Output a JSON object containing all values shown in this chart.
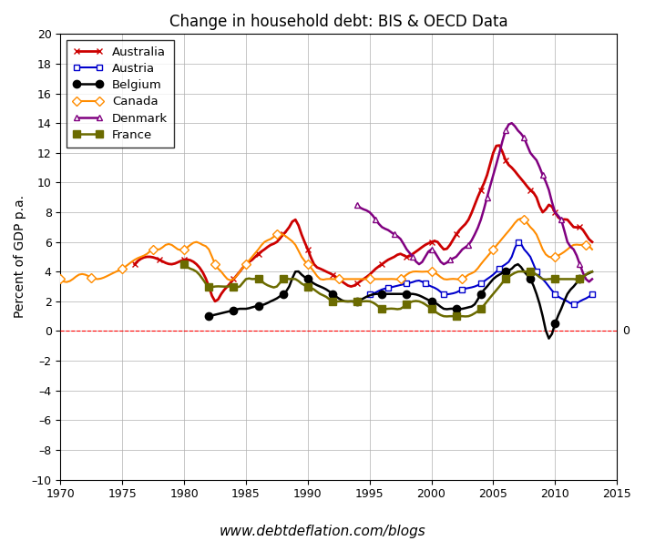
{
  "title": "Change in household debt: BIS & OECD Data",
  "ylabel": "Percent of GDP p.a.",
  "xlabel_bottom": "www.debtdeflation.com/blogs",
  "xlim": [
    1970,
    2015
  ],
  "ylim": [
    -10,
    20
  ],
  "yticks": [
    -10,
    -8,
    -6,
    -4,
    -2,
    0,
    2,
    4,
    6,
    8,
    10,
    12,
    14,
    16,
    18,
    20
  ],
  "ytick_labels": [
    "–10",
    "–8",
    "–6",
    "–4",
    "–2",
    "0",
    "2",
    "4",
    "6",
    "8",
    "10",
    "12",
    "14",
    "16",
    "18",
    "20"
  ],
  "xticks": [
    1970,
    1975,
    1980,
    1985,
    1990,
    1995,
    2000,
    2005,
    2010,
    2015
  ],
  "zero_label": "0",
  "series": {
    "Australia": {
      "color": "#cc0000",
      "marker": "x",
      "markersize": 5,
      "linewidth": 2.0,
      "markevery": 8,
      "markerfacecolor": "#cc0000",
      "ctrl_x": [
        1976.0,
        1977.0,
        1978.0,
        1979.0,
        1980.0,
        1981.0,
        1982.0,
        1982.5,
        1983.0,
        1983.5,
        1984.0,
        1984.5,
        1985.0,
        1985.5,
        1986.0,
        1986.5,
        1987.0,
        1987.5,
        1988.0,
        1988.5,
        1989.0,
        1989.5,
        1990.0,
        1990.5,
        1991.0,
        1991.5,
        1992.0,
        1992.5,
        1993.0,
        1993.5,
        1994.0,
        1994.5,
        1995.0,
        1995.5,
        1996.0,
        1996.5,
        1997.0,
        1997.5,
        1998.0,
        1998.5,
        1999.0,
        1999.5,
        2000.0,
        2000.5,
        2001.0,
        2001.5,
        2002.0,
        2002.5,
        2003.0,
        2003.5,
        2004.0,
        2004.5,
        2005.0,
        2005.5,
        2006.0,
        2006.5,
        2007.0,
        2007.5,
        2008.0,
        2008.5,
        2009.0,
        2009.5,
        2010.0,
        2010.5,
        2011.0,
        2011.5,
        2012.0,
        2012.5,
        2013.0
      ],
      "ctrl_y": [
        4.5,
        5.0,
        4.8,
        4.5,
        4.8,
        4.5,
        3.0,
        2.0,
        2.5,
        3.0,
        3.5,
        4.0,
        4.5,
        4.8,
        5.2,
        5.5,
        5.8,
        6.0,
        6.5,
        7.0,
        7.5,
        6.5,
        5.5,
        4.5,
        4.2,
        4.0,
        3.8,
        3.5,
        3.2,
        3.0,
        3.2,
        3.5,
        3.8,
        4.2,
        4.5,
        4.8,
        5.0,
        5.2,
        5.0,
        5.2,
        5.5,
        5.8,
        6.0,
        6.0,
        5.5,
        5.8,
        6.5,
        7.0,
        7.5,
        8.5,
        9.5,
        10.5,
        12.0,
        12.5,
        11.5,
        11.0,
        10.5,
        10.0,
        9.5,
        9.0,
        8.0,
        8.5,
        8.0,
        7.5,
        7.5,
        7.0,
        7.0,
        6.5,
        6.0
      ]
    },
    "Austria": {
      "color": "#0000cc",
      "marker": "s",
      "markersize": 5,
      "linewidth": 1.5,
      "markevery": 6,
      "markerfacecolor": "white",
      "ctrl_x": [
        1995.0,
        1995.5,
        1996.0,
        1996.5,
        1997.0,
        1997.5,
        1998.0,
        1998.5,
        1999.0,
        1999.5,
        2000.0,
        2000.5,
        2001.0,
        2001.5,
        2002.0,
        2002.5,
        2003.0,
        2003.5,
        2004.0,
        2004.5,
        2005.0,
        2005.5,
        2006.0,
        2006.5,
        2007.0,
        2007.5,
        2008.0,
        2008.5,
        2009.0,
        2009.5,
        2010.0,
        2010.5,
        2011.0,
        2011.5,
        2012.0,
        2012.5,
        2013.0
      ],
      "ctrl_y": [
        2.5,
        2.6,
        2.8,
        2.9,
        3.0,
        3.1,
        3.2,
        3.3,
        3.4,
        3.2,
        3.0,
        2.8,
        2.5,
        2.5,
        2.6,
        2.8,
        2.9,
        3.0,
        3.2,
        3.5,
        3.8,
        4.2,
        4.5,
        5.0,
        6.0,
        5.5,
        5.0,
        4.0,
        3.5,
        3.0,
        2.5,
        2.2,
        2.0,
        1.8,
        2.0,
        2.2,
        2.5
      ]
    },
    "Belgium": {
      "color": "#000000",
      "marker": "o",
      "markersize": 6,
      "linewidth": 1.8,
      "markevery": 8,
      "markerfacecolor": "#000000",
      "ctrl_x": [
        1982.0,
        1982.5,
        1983.0,
        1983.5,
        1984.0,
        1984.5,
        1985.0,
        1985.5,
        1986.0,
        1986.5,
        1987.0,
        1987.5,
        1988.0,
        1988.5,
        1989.0,
        1989.5,
        1990.0,
        1990.5,
        1991.0,
        1991.5,
        1992.0,
        1992.5,
        1993.0,
        1993.5,
        1994.0,
        1994.5,
        1995.0,
        1995.5,
        1996.0,
        1996.5,
        1997.0,
        1997.5,
        1998.0,
        1998.5,
        1999.0,
        1999.5,
        2000.0,
        2000.5,
        2001.0,
        2001.5,
        2002.0,
        2002.5,
        2003.0,
        2003.5,
        2004.0,
        2004.5,
        2005.0,
        2005.5,
        2006.0,
        2006.5,
        2007.0,
        2007.5,
        2008.0,
        2008.5,
        2009.0,
        2009.5,
        2010.0,
        2010.5,
        2011.0,
        2011.5,
        2012.0,
        2012.5,
        2013.0
      ],
      "ctrl_y": [
        1.0,
        1.1,
        1.2,
        1.3,
        1.4,
        1.5,
        1.5,
        1.6,
        1.7,
        1.8,
        2.0,
        2.2,
        2.5,
        3.0,
        4.0,
        3.8,
        3.5,
        3.2,
        3.0,
        2.8,
        2.5,
        2.2,
        2.0,
        2.0,
        2.0,
        2.2,
        2.4,
        2.5,
        2.5,
        2.5,
        2.5,
        2.5,
        2.5,
        2.5,
        2.4,
        2.2,
        2.0,
        1.8,
        1.5,
        1.5,
        1.5,
        1.5,
        1.6,
        1.8,
        2.5,
        3.0,
        3.5,
        3.8,
        4.0,
        4.2,
        4.5,
        4.0,
        3.5,
        2.5,
        1.0,
        -0.5,
        0.5,
        1.5,
        2.5,
        3.0,
        3.5,
        3.8,
        4.0
      ]
    },
    "Canada": {
      "color": "#ff8c00",
      "marker": "D",
      "markersize": 5,
      "linewidth": 1.5,
      "markevery": 10,
      "markerfacecolor": "white",
      "ctrl_x": [
        1970.0,
        1970.5,
        1971.0,
        1971.5,
        1972.0,
        1972.5,
        1973.0,
        1973.5,
        1974.0,
        1974.5,
        1975.0,
        1975.5,
        1976.0,
        1976.5,
        1977.0,
        1977.5,
        1978.0,
        1978.5,
        1979.0,
        1979.5,
        1980.0,
        1980.5,
        1981.0,
        1981.5,
        1982.0,
        1982.5,
        1983.0,
        1983.5,
        1984.0,
        1984.5,
        1985.0,
        1985.5,
        1986.0,
        1986.5,
        1987.0,
        1987.5,
        1988.0,
        1988.5,
        1989.0,
        1989.5,
        1990.0,
        1990.5,
        1991.0,
        1991.5,
        1992.0,
        1992.5,
        1993.0,
        1993.5,
        1994.0,
        1994.5,
        1995.0,
        1995.5,
        1996.0,
        1996.5,
        1997.0,
        1997.5,
        1998.0,
        1998.5,
        1999.0,
        1999.5,
        2000.0,
        2000.5,
        2001.0,
        2001.5,
        2002.0,
        2002.5,
        2003.0,
        2003.5,
        2004.0,
        2004.5,
        2005.0,
        2005.5,
        2006.0,
        2006.5,
        2007.0,
        2007.5,
        2008.0,
        2008.5,
        2009.0,
        2009.5,
        2010.0,
        2010.5,
        2011.0,
        2011.5,
        2012.0,
        2012.5,
        2013.0
      ],
      "ctrl_y": [
        3.5,
        3.3,
        3.5,
        3.8,
        3.8,
        3.6,
        3.5,
        3.6,
        3.8,
        4.0,
        4.2,
        4.5,
        4.8,
        5.0,
        5.2,
        5.5,
        5.5,
        5.8,
        5.8,
        5.5,
        5.5,
        5.8,
        6.0,
        5.8,
        5.5,
        4.5,
        4.0,
        3.5,
        3.5,
        4.0,
        4.5,
        5.0,
        5.5,
        6.0,
        6.2,
        6.5,
        6.5,
        6.2,
        5.8,
        5.0,
        4.5,
        4.0,
        3.5,
        3.5,
        3.5,
        3.5,
        3.5,
        3.5,
        3.5,
        3.5,
        3.5,
        3.5,
        3.5,
        3.5,
        3.5,
        3.5,
        3.8,
        4.0,
        4.0,
        4.0,
        4.0,
        3.8,
        3.5,
        3.5,
        3.5,
        3.5,
        3.8,
        4.0,
        4.5,
        5.0,
        5.5,
        6.0,
        6.5,
        7.0,
        7.5,
        7.5,
        7.0,
        6.5,
        5.5,
        5.0,
        5.0,
        5.2,
        5.5,
        5.8,
        5.8,
        5.8,
        5.5
      ]
    },
    "Denmark": {
      "color": "#800080",
      "marker": "^",
      "markersize": 5,
      "linewidth": 1.8,
      "markevery": 6,
      "markerfacecolor": "white",
      "ctrl_x": [
        1994.0,
        1994.5,
        1995.0,
        1995.5,
        1996.0,
        1996.5,
        1997.0,
        1997.5,
        1998.0,
        1998.5,
        1999.0,
        1999.5,
        2000.0,
        2000.5,
        2001.0,
        2001.5,
        2002.0,
        2002.5,
        2003.0,
        2003.5,
        2004.0,
        2004.5,
        2005.0,
        2005.5,
        2006.0,
        2006.5,
        2007.0,
        2007.5,
        2008.0,
        2008.5,
        2009.0,
        2009.5,
        2010.0,
        2010.5,
        2011.0,
        2011.5,
        2012.0,
        2012.5,
        2013.0
      ],
      "ctrl_y": [
        8.5,
        8.2,
        8.0,
        7.5,
        7.0,
        6.8,
        6.5,
        6.2,
        5.5,
        5.0,
        4.5,
        5.0,
        5.5,
        5.0,
        4.5,
        4.8,
        5.0,
        5.5,
        5.8,
        6.5,
        7.5,
        9.0,
        10.5,
        12.0,
        13.5,
        14.0,
        13.5,
        13.0,
        12.0,
        11.5,
        10.5,
        9.5,
        8.0,
        7.5,
        6.0,
        5.5,
        4.5,
        3.5,
        3.5
      ]
    },
    "France": {
      "color": "#6b6b00",
      "marker": "s",
      "markersize": 6,
      "linewidth": 1.8,
      "markevery": 8,
      "markerfacecolor": "#6b6b00",
      "ctrl_x": [
        1980.0,
        1980.5,
        1981.0,
        1981.5,
        1982.0,
        1982.5,
        1983.0,
        1983.5,
        1984.0,
        1984.5,
        1985.0,
        1985.5,
        1986.0,
        1986.5,
        1987.0,
        1987.5,
        1988.0,
        1988.5,
        1989.0,
        1989.5,
        1990.0,
        1990.5,
        1991.0,
        1991.5,
        1992.0,
        1992.5,
        1993.0,
        1993.5,
        1994.0,
        1994.5,
        1995.0,
        1995.5,
        1996.0,
        1996.5,
        1997.0,
        1997.5,
        1998.0,
        1998.5,
        1999.0,
        1999.5,
        2000.0,
        2000.5,
        2001.0,
        2001.5,
        2002.0,
        2002.5,
        2003.0,
        2003.5,
        2004.0,
        2004.5,
        2005.0,
        2005.5,
        2006.0,
        2006.5,
        2007.0,
        2007.5,
        2008.0,
        2008.5,
        2009.0,
        2009.5,
        2010.0,
        2010.5,
        2011.0,
        2011.5,
        2012.0,
        2012.5,
        2013.0
      ],
      "ctrl_y": [
        4.5,
        4.2,
        4.0,
        3.5,
        3.0,
        3.0,
        3.0,
        3.0,
        3.0,
        3.0,
        3.5,
        3.5,
        3.5,
        3.2,
        3.0,
        3.0,
        3.5,
        3.5,
        3.5,
        3.2,
        3.0,
        2.8,
        2.5,
        2.3,
        2.0,
        2.0,
        2.0,
        2.0,
        2.0,
        2.0,
        2.0,
        1.8,
        1.5,
        1.5,
        1.5,
        1.5,
        1.8,
        2.0,
        2.0,
        1.8,
        1.5,
        1.2,
        1.0,
        1.0,
        1.0,
        1.0,
        1.0,
        1.2,
        1.5,
        2.0,
        2.5,
        3.0,
        3.5,
        3.8,
        4.0,
        4.0,
        4.0,
        3.8,
        3.5,
        3.5,
        3.5,
        3.5,
        3.5,
        3.5,
        3.5,
        3.8,
        4.0
      ]
    }
  }
}
